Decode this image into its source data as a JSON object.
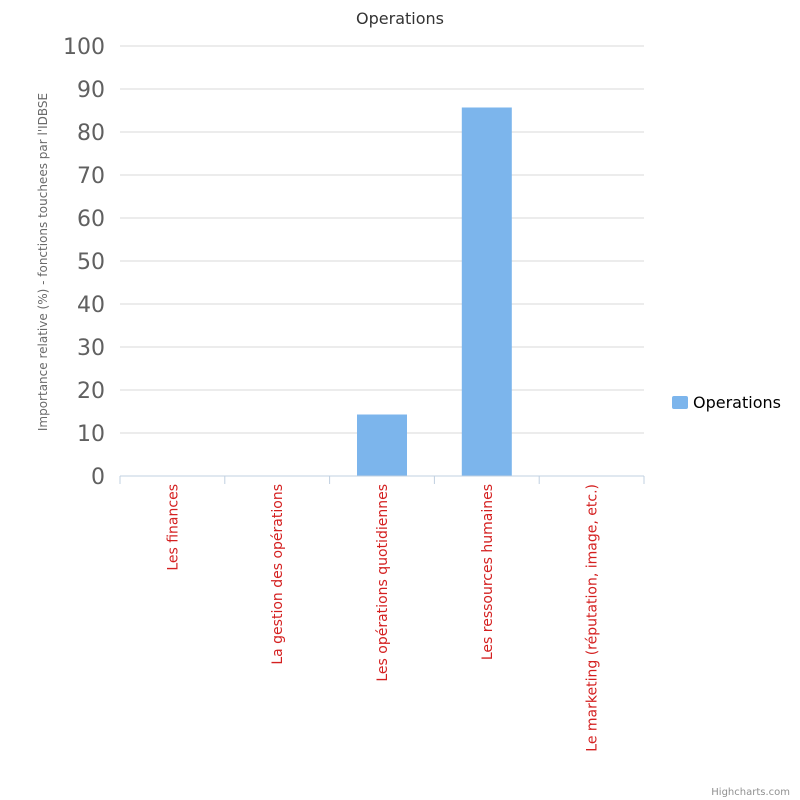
{
  "chart_data": {
    "type": "bar",
    "title": "Operations",
    "ylabel": "Importance relative (%) - fonctions touchees par l'IDBSE",
    "xlabel": "",
    "categories": [
      "Les finances",
      "La gestion des opérations",
      "Les opérations quotidiennes",
      "Les ressources humaines",
      "Le marketing (réputation, image, etc.)"
    ],
    "series": [
      {
        "name": "Operations",
        "values": [
          0,
          0,
          14.3,
          85.7,
          0
        ],
        "color": "#7cb5ec"
      }
    ],
    "ylim": [
      0,
      100
    ],
    "yticks": [
      0,
      10,
      20,
      30,
      40,
      50,
      60,
      70,
      80,
      90,
      100
    ],
    "grid": true,
    "legend_position": "right",
    "colors": {
      "grid": "#d8d8d8",
      "axis": "#c0d0e0",
      "category_text": "#d42020"
    }
  },
  "credits": "Highcharts.com"
}
